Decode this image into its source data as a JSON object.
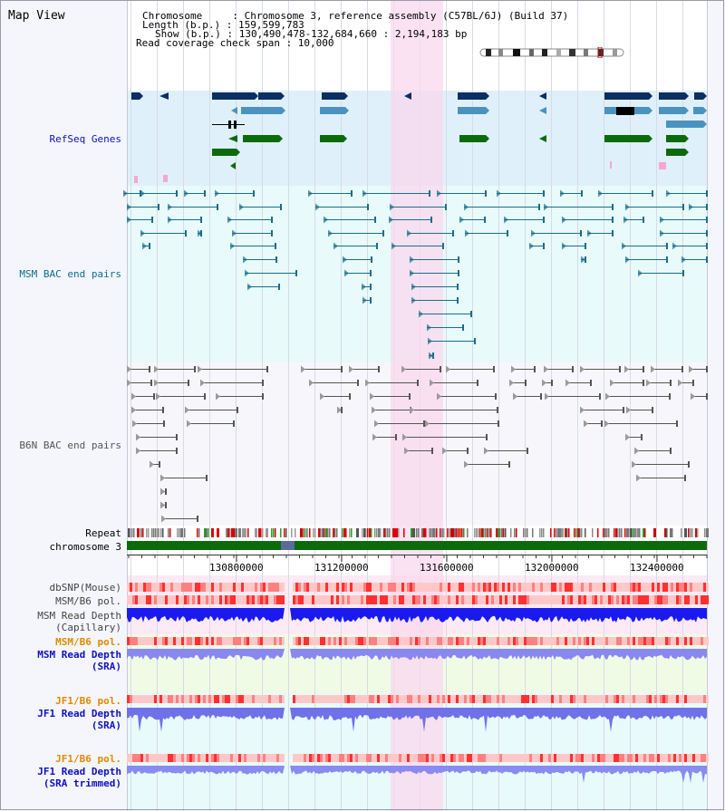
{
  "view_title": "Map View",
  "info": {
    "chromosome_line": "Chromosome     : Chromosome 3, reference assembly (C57BL/6J) (Build 37)",
    "length_line": "Length (b.p.) : 159,599,783",
    "show_line": "Show (b.p.) : 130,490,478-132,684,660 : 2,194,183 bp",
    "read_cov_line": "Read coverage check span : 10,000"
  },
  "tracks": {
    "refseq": "RefSeq Genes",
    "msm_bac": "MSM BAC end pairs",
    "b6n_bac": "B6N BAC end pairs",
    "repeat": "Repeat",
    "chromosome": "chromosome 3",
    "dbsnp": "dbSNP(Mouse)",
    "msm_b6_pol": "MSM/B6 pol.",
    "msm_depth_cap_1": "MSM Read Depth",
    "msm_depth_cap_2": "(Capillary)",
    "msm_b6_pol_sra": "MSM/B6 pol.",
    "msm_depth_sra_1": "MSM Read Depth",
    "msm_depth_sra_2": "(SRA)",
    "jf1_pol_1": "JF1/B6 pol.",
    "jf1_depth_1": "JF1 Read Depth",
    "jf1_depth_1b": "(SRA)",
    "jf1_pol_2": "JF1/B6 pol.",
    "jf1_depth_2": "JF1 Read Depth",
    "jf1_depth_2b": "(SRA trimmed)"
  },
  "axis": {
    "ticks": [
      "130800000",
      "131200000",
      "131600000",
      "132000000",
      "132400000"
    ]
  },
  "colors": {
    "refseq_bg": "#dff0fa",
    "msm_bg": "#e8fafa",
    "gene_navy": "#0b2e63",
    "gene_blue": "#4a93be",
    "gene_green": "#0b6b0b",
    "bac_msm": "#1a6e8a",
    "bac_b6n": "#555555",
    "highlight": "#f9d8ee",
    "orange_label": "#e08a00",
    "blue_label": "#1010c0"
  }
}
